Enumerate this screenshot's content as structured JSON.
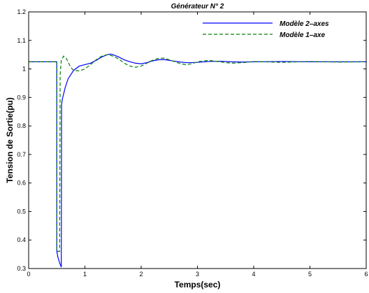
{
  "chart_data": {
    "type": "line",
    "title": "Générateur N° 2",
    "xlabel": "Temps(sec)",
    "ylabel": "Tension de Sortie(pu)",
    "xlim": [
      0,
      6
    ],
    "ylim": [
      0.3,
      1.2
    ],
    "x_ticks": [
      "0",
      "1",
      "2",
      "3",
      "4",
      "5",
      "6"
    ],
    "y_ticks": [
      "0.3",
      "0.4",
      "0.5",
      "0.6",
      "0.7",
      "0.8",
      "0.9",
      "1",
      "1.1",
      "1.2"
    ],
    "grid": false,
    "legend_position": "top-right",
    "series": [
      {
        "name": "Modèle 2–axes",
        "color": "#0000ff",
        "dash": "solid",
        "x": [
          0,
          0.5,
          0.501,
          0.52,
          0.55,
          0.58,
          0.585,
          0.6,
          0.65,
          0.7,
          0.8,
          0.9,
          1.0,
          1.1,
          1.2,
          1.3,
          1.4,
          1.45,
          1.5,
          1.6,
          1.7,
          1.8,
          1.9,
          2.0,
          2.1,
          2.2,
          2.3,
          2.4,
          2.5,
          2.6,
          2.7,
          2.8,
          2.9,
          3.0,
          3.2,
          3.4,
          3.6,
          3.8,
          4.0,
          4.5,
          5.0,
          5.5,
          6.0
        ],
        "y": [
          1.025,
          1.025,
          0.36,
          0.34,
          0.32,
          0.305,
          0.875,
          0.895,
          0.935,
          0.965,
          0.995,
          1.01,
          1.015,
          1.02,
          1.03,
          1.042,
          1.05,
          1.052,
          1.05,
          1.042,
          1.032,
          1.025,
          1.02,
          1.018,
          1.022,
          1.028,
          1.032,
          1.033,
          1.03,
          1.027,
          1.024,
          1.022,
          1.022,
          1.023,
          1.026,
          1.027,
          1.025,
          1.024,
          1.025,
          1.026,
          1.025,
          1.025,
          1.025
        ]
      },
      {
        "name": "Modèle 1–axe",
        "color": "#008000",
        "dash": "dashed",
        "x": [
          0,
          0.5,
          0.501,
          0.55,
          0.56,
          0.58,
          0.62,
          0.66,
          0.7,
          0.75,
          0.8,
          0.9,
          1.0,
          1.1,
          1.2,
          1.3,
          1.4,
          1.5,
          1.6,
          1.7,
          1.8,
          1.9,
          2.0,
          2.1,
          2.2,
          2.3,
          2.4,
          2.5,
          2.6,
          2.7,
          2.8,
          2.9,
          3.0,
          3.2,
          3.4,
          3.6,
          3.8,
          4.0,
          4.5,
          5.0,
          5.5,
          6.0
        ],
        "y": [
          1.025,
          1.025,
          0.36,
          0.36,
          0.98,
          1.03,
          1.045,
          1.04,
          1.025,
          1.005,
          0.995,
          0.993,
          1.0,
          1.015,
          1.032,
          1.045,
          1.05,
          1.045,
          1.035,
          1.02,
          1.01,
          1.006,
          1.01,
          1.02,
          1.03,
          1.037,
          1.038,
          1.032,
          1.025,
          1.018,
          1.015,
          1.018,
          1.025,
          1.03,
          1.025,
          1.02,
          1.022,
          1.026,
          1.023,
          1.026,
          1.024,
          1.025
        ]
      }
    ]
  }
}
